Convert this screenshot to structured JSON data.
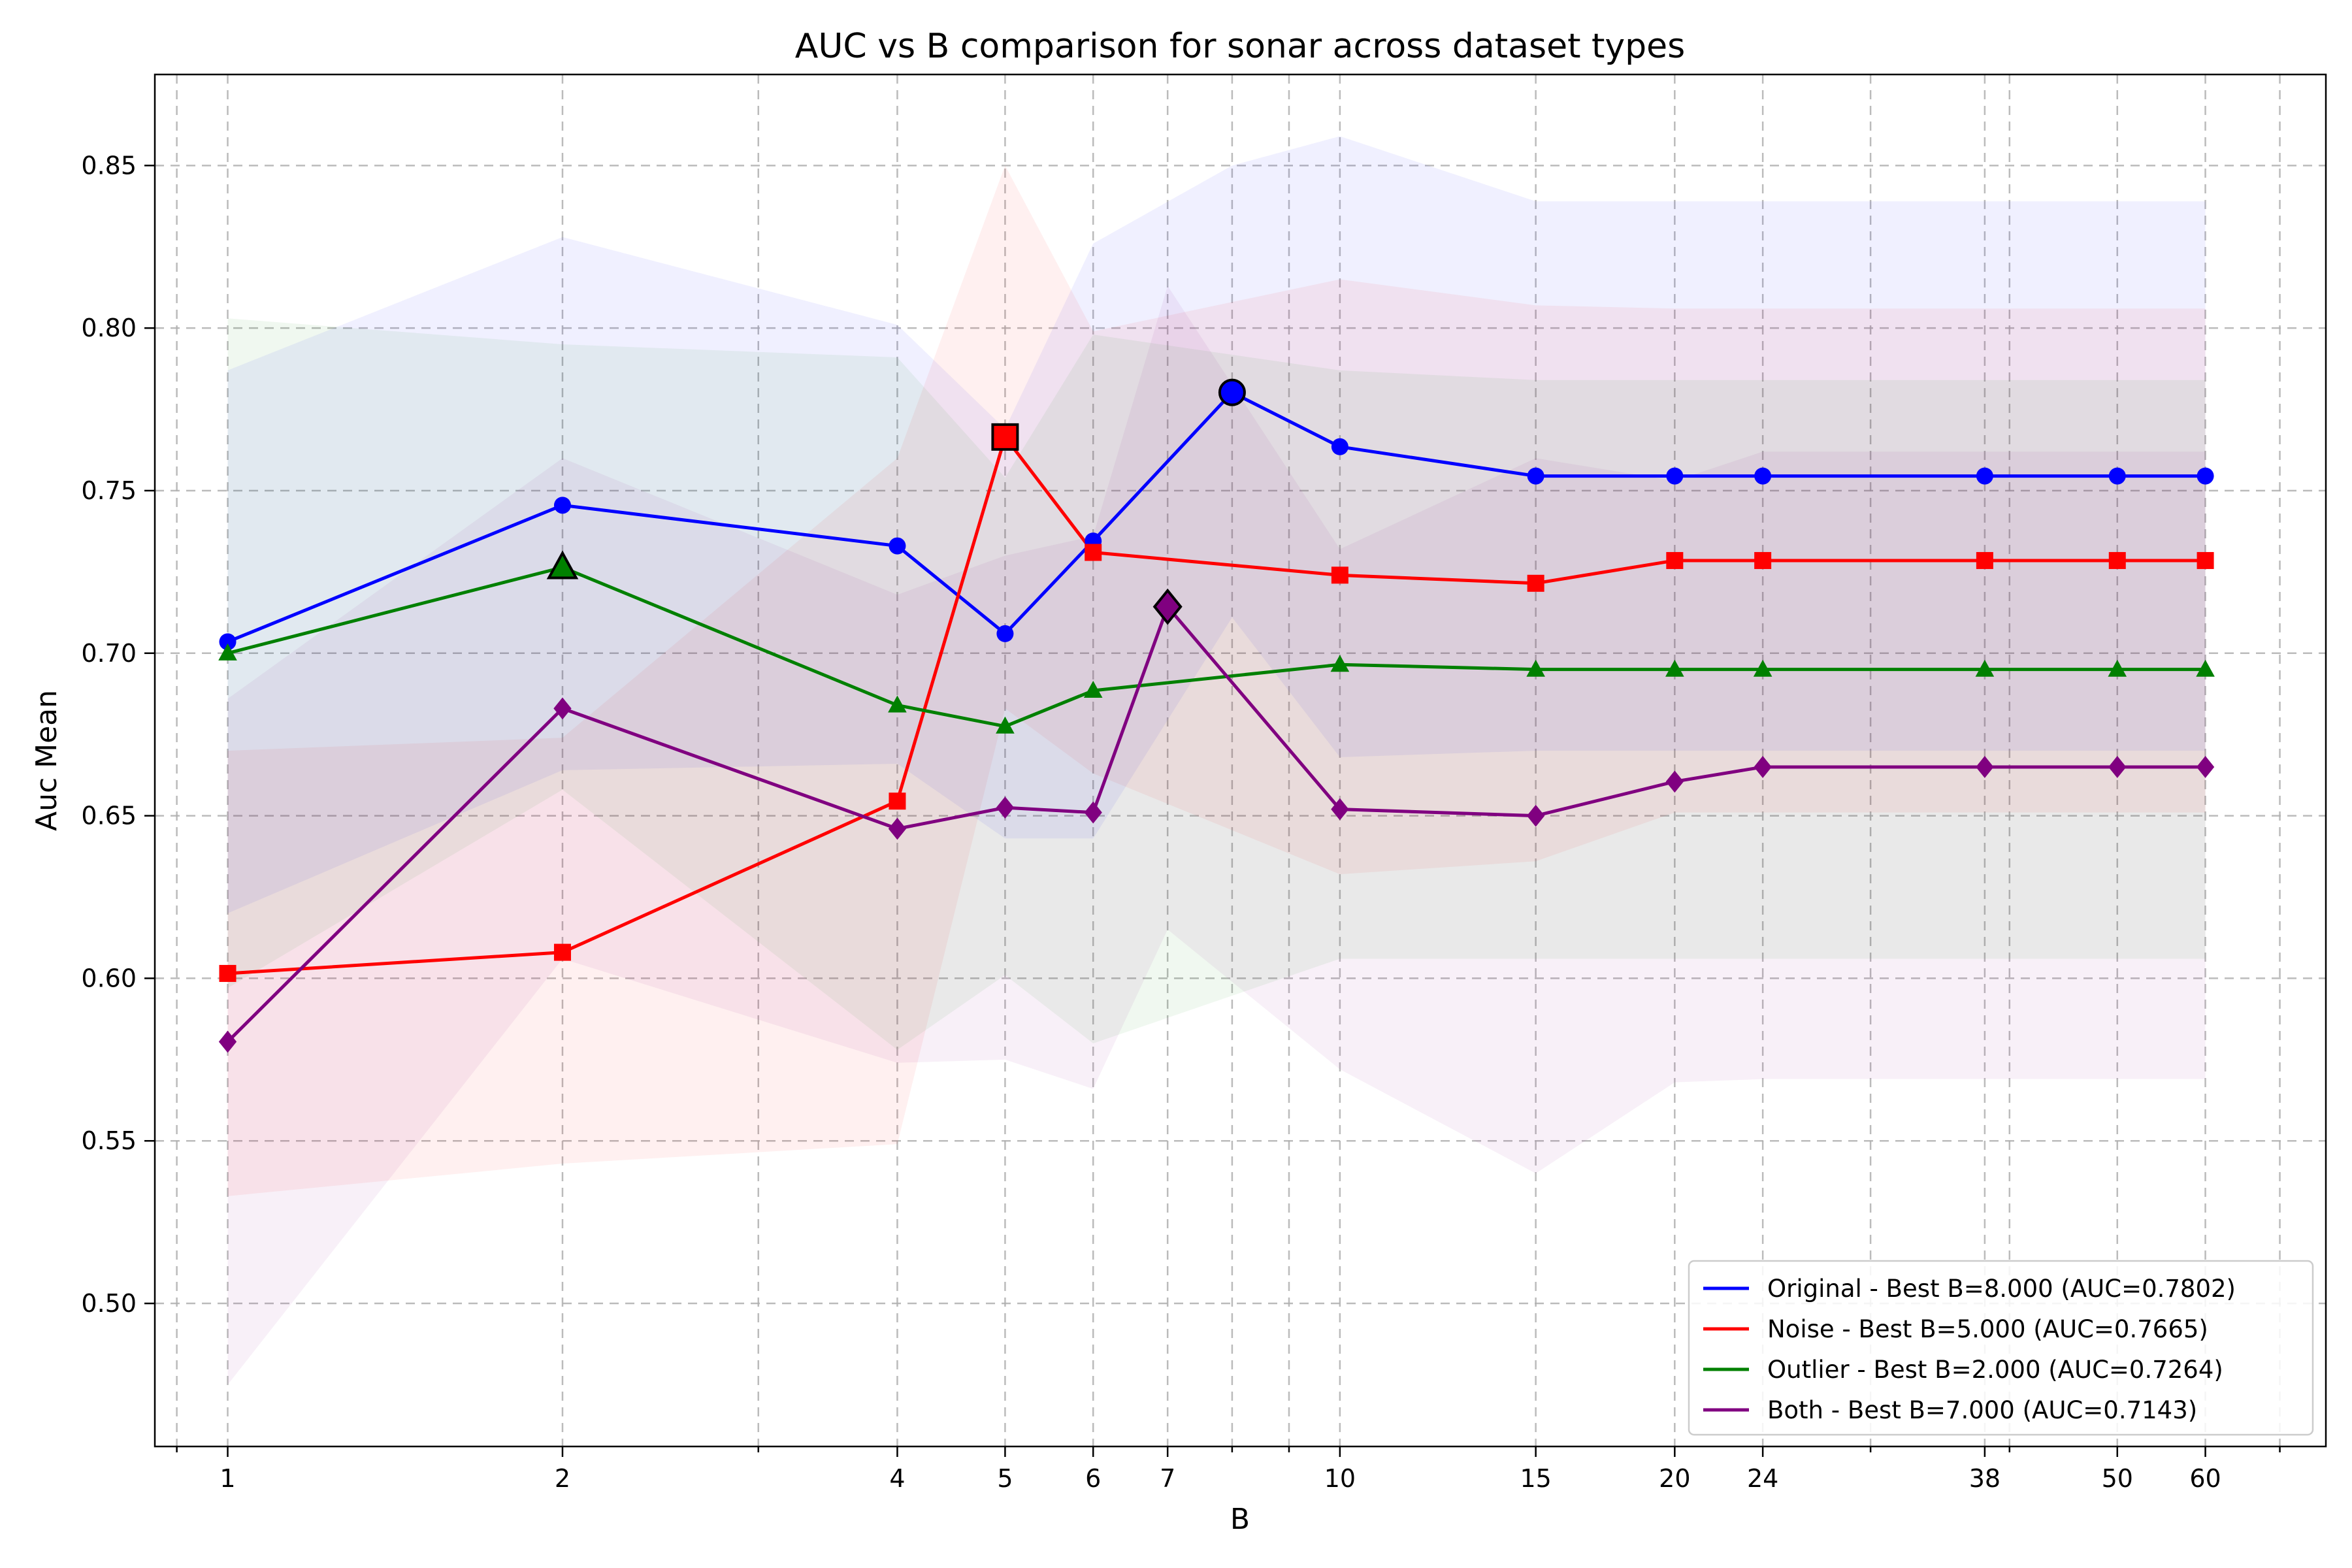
{
  "chart_data": {
    "type": "line",
    "title": "AUC vs B comparison for sonar across dataset types",
    "xlabel": "B",
    "ylabel": "Auc Mean",
    "x_scale": "log",
    "xlim": [
      0.86,
      77
    ],
    "ylim": [
      0.456,
      0.878
    ],
    "grid": true,
    "legend_position": "lower right",
    "x_ticks": [
      1,
      2,
      4,
      5,
      6,
      7,
      10,
      15,
      20,
      24,
      38,
      50,
      60
    ],
    "x_tick_labels": [
      "1",
      "2",
      "4",
      "5",
      "6",
      "7",
      "10",
      "15",
      "20",
      "24",
      "38",
      "50",
      "60"
    ],
    "y_ticks": [
      0.5,
      0.55,
      0.6,
      0.65,
      0.7,
      0.75,
      0.8,
      0.85
    ],
    "y_tick_labels": [
      "0.50",
      "0.55",
      "0.60",
      "0.65",
      "0.70",
      "0.75",
      "0.80",
      "0.85"
    ],
    "series": [
      {
        "name": "Original",
        "legend": "Original - Best B=8.000 (AUC=0.7802)",
        "color": "#0000ff",
        "marker": "circle",
        "x": [
          1,
          2,
          4,
          5,
          6,
          8,
          10,
          15,
          20,
          24,
          38,
          50,
          60
        ],
        "y": [
          0.7035,
          0.7455,
          0.733,
          0.706,
          0.7345,
          0.7802,
          0.7635,
          0.7545,
          0.7545,
          0.7545,
          0.7545,
          0.7545,
          0.7545
        ],
        "lower": [
          0.62,
          0.664,
          0.666,
          0.643,
          0.643,
          0.711,
          0.668,
          0.67,
          0.67,
          0.67,
          0.67,
          0.67,
          0.67
        ],
        "upper": [
          0.787,
          0.828,
          0.801,
          0.769,
          0.826,
          0.85,
          0.859,
          0.839,
          0.839,
          0.839,
          0.839,
          0.839,
          0.839
        ],
        "best": {
          "x": 8,
          "y": 0.7802
        }
      },
      {
        "name": "Noise",
        "legend": "Noise - Best B=5.000 (AUC=0.7665)",
        "color": "#ff0000",
        "marker": "square",
        "x": [
          1,
          2,
          4,
          5,
          6,
          10,
          15,
          20,
          24,
          38,
          50,
          60
        ],
        "y": [
          0.6015,
          0.608,
          0.6545,
          0.7665,
          0.731,
          0.724,
          0.7215,
          0.7285,
          0.7285,
          0.7285,
          0.7285,
          0.7285
        ],
        "lower": [
          0.533,
          0.543,
          0.549,
          0.683,
          0.663,
          0.632,
          0.636,
          0.651,
          0.651,
          0.651,
          0.651,
          0.651
        ],
        "upper": [
          0.67,
          0.674,
          0.76,
          0.85,
          0.799,
          0.815,
          0.807,
          0.806,
          0.806,
          0.806,
          0.806,
          0.806
        ],
        "best": {
          "x": 5,
          "y": 0.7665
        }
      },
      {
        "name": "Outlier",
        "legend": "Outlier - Best B=2.000 (AUC=0.7264)",
        "color": "#008000",
        "marker": "triangle",
        "x": [
          1,
          2,
          4,
          5,
          6,
          10,
          15,
          20,
          24,
          38,
          50,
          60
        ],
        "y": [
          0.7,
          0.7264,
          0.684,
          0.6775,
          0.6885,
          0.6965,
          0.695,
          0.695,
          0.695,
          0.695,
          0.695,
          0.695
        ],
        "lower": [
          0.597,
          0.658,
          0.578,
          0.601,
          0.58,
          0.606,
          0.606,
          0.606,
          0.606,
          0.606,
          0.606,
          0.606
        ],
        "upper": [
          0.803,
          0.795,
          0.791,
          0.754,
          0.798,
          0.787,
          0.784,
          0.784,
          0.784,
          0.784,
          0.784,
          0.784
        ],
        "best": {
          "x": 2,
          "y": 0.7264
        }
      },
      {
        "name": "Both",
        "legend": "Both - Best B=7.000 (AUC=0.7143)",
        "color": "#800080",
        "marker": "diamond",
        "x": [
          1,
          2,
          4,
          5,
          6,
          7,
          10,
          15,
          20,
          24,
          38,
          50,
          60
        ],
        "y": [
          0.5805,
          0.683,
          0.646,
          0.6525,
          0.651,
          0.7143,
          0.652,
          0.65,
          0.6605,
          0.665,
          0.665,
          0.665,
          0.665
        ],
        "lower": [
          0.475,
          0.606,
          0.574,
          0.575,
          0.566,
          0.615,
          0.572,
          0.54,
          0.568,
          0.569,
          0.569,
          0.569,
          0.569
        ],
        "upper": [
          0.686,
          0.76,
          0.718,
          0.73,
          0.736,
          0.813,
          0.732,
          0.76,
          0.753,
          0.762,
          0.762,
          0.762,
          0.762
        ],
        "best": {
          "x": 7,
          "y": 0.7143
        }
      }
    ]
  }
}
